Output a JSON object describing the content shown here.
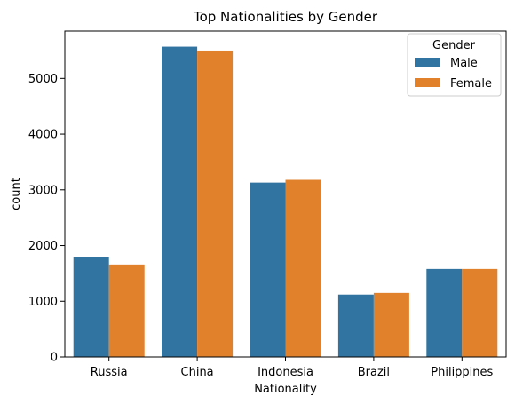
{
  "chart_data": {
    "type": "bar",
    "title": "Top Nationalities by Gender",
    "xlabel": "Nationality",
    "ylabel": "count",
    "categories": [
      "Russia",
      "China",
      "Indonesia",
      "Brazil",
      "Philippines"
    ],
    "series": [
      {
        "name": "Male",
        "color": "#3274a1",
        "values": [
          1790,
          5570,
          3130,
          1120,
          1580
        ]
      },
      {
        "name": "Female",
        "color": "#e1812c",
        "values": [
          1660,
          5500,
          3180,
          1150,
          1580
        ]
      }
    ],
    "yticks": [
      "0",
      "1000",
      "2000",
      "3000",
      "4000",
      "5000"
    ],
    "ylim": [
      0,
      5850
    ],
    "legend": {
      "title": "Gender",
      "position": "top-right"
    },
    "grid": false
  }
}
